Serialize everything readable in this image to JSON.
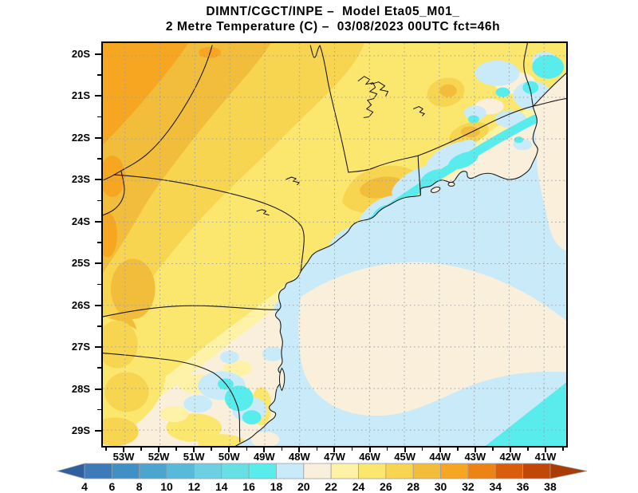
{
  "title": {
    "line1": "DIMNT/CGCT/INPE –  Model Eta05_M01_",
    "line2": "2 Metre Temperature (C) –  03/08/2023 00UTC fct=46h"
  },
  "axes": {
    "lat_labels": [
      "20S",
      "21S",
      "22S",
      "23S",
      "24S",
      "25S",
      "26S",
      "27S",
      "28S",
      "29S"
    ],
    "lon_labels": [
      "53W",
      "52W",
      "51W",
      "50W",
      "49W",
      "48W",
      "47W",
      "46W",
      "45W",
      "44W",
      "43W",
      "42W",
      "41W"
    ]
  },
  "colorbar": {
    "labels": [
      "4",
      "6",
      "8",
      "10",
      "12",
      "14",
      "16",
      "18",
      "20",
      "22",
      "24",
      "26",
      "28",
      "30",
      "32",
      "34",
      "36",
      "38"
    ],
    "segment_colors": [
      "#3d7ab8",
      "#4190c4",
      "#4ba5cf",
      "#58b9d9",
      "#6fcfe2",
      "#66dfe5",
      "#59ecec",
      "#c9eaf8",
      "#faefdb",
      "#fdf2a6",
      "#fce76e",
      "#f8d551",
      "#f2bd3a",
      "#f6a621",
      "#ec8314",
      "#d85e0b",
      "#c04708"
    ],
    "below_arrow_color": "#2e5f9e",
    "above_arrow_color": "#a93c04",
    "outline_color": "#9aa0a6"
  },
  "chart_data": {
    "type": "heatmap",
    "title": "DIMNT/CGCT/INPE –  Model Eta05_M01_",
    "subtitle": "2 Metre Temperature (C) –  03/08/2023 00UTC fct=46h",
    "institution": "DIMNT/CGCT/INPE",
    "model": "Eta05_M01_",
    "variable": "2 Metre Temperature (C)",
    "valid_time": "03/08/2023 00UTC",
    "forecast": "fct=46h",
    "lat_ticks": [
      "20S",
      "21S",
      "22S",
      "23S",
      "24S",
      "25S",
      "26S",
      "27S",
      "28S",
      "29S"
    ],
    "lon_ticks": [
      "53W",
      "52W",
      "51W",
      "50W",
      "49W",
      "48W",
      "47W",
      "46W",
      "45W",
      "44W",
      "43W",
      "42W",
      "41W"
    ],
    "lat_range": [
      "19.7S",
      "29.4S"
    ],
    "lon_range": [
      "53.6W",
      "40.4W"
    ],
    "grid": "1-degree dotted graticule, on",
    "legend_position": "bottom horizontal colorbar with under/over arrows",
    "colorbar_levels_c": [
      4,
      6,
      8,
      10,
      12,
      14,
      16,
      18,
      20,
      22,
      24,
      26,
      28,
      30,
      32,
      34,
      36,
      38
    ],
    "field_estimates_c": [
      {
        "region": "far northwest interior (top-left corner)",
        "value": "30-32"
      },
      {
        "region": "northwest / northern plateau (west Sao Paulo, Minas)",
        "value": "26-30"
      },
      {
        "region": "central interior",
        "value": "24-26"
      },
      {
        "region": "belt inland of the coast and southern plateau",
        "value": "20-24"
      },
      {
        "region": "Serra do Mar coastal mountain band (Sao Paulo - Rio)",
        "value": "16-18"
      },
      {
        "region": "mountain valleys in the northeast (Minas Gerais)",
        "value": "16-20"
      },
      {
        "region": "Santa Catarina highlands patches",
        "value": "16-20"
      },
      {
        "region": "nearshore ocean along coast",
        "value": "18-20"
      },
      {
        "region": "open ocean offshore",
        "value": "20-22"
      },
      {
        "region": "far southeast ocean corner",
        "value": "16-18"
      },
      {
        "region": "warm strip along eastern map edge (ocean)",
        "value": "24-26"
      }
    ]
  },
  "frame": {
    "border_color": "#000000",
    "grid_color": "#9aa0a6"
  }
}
